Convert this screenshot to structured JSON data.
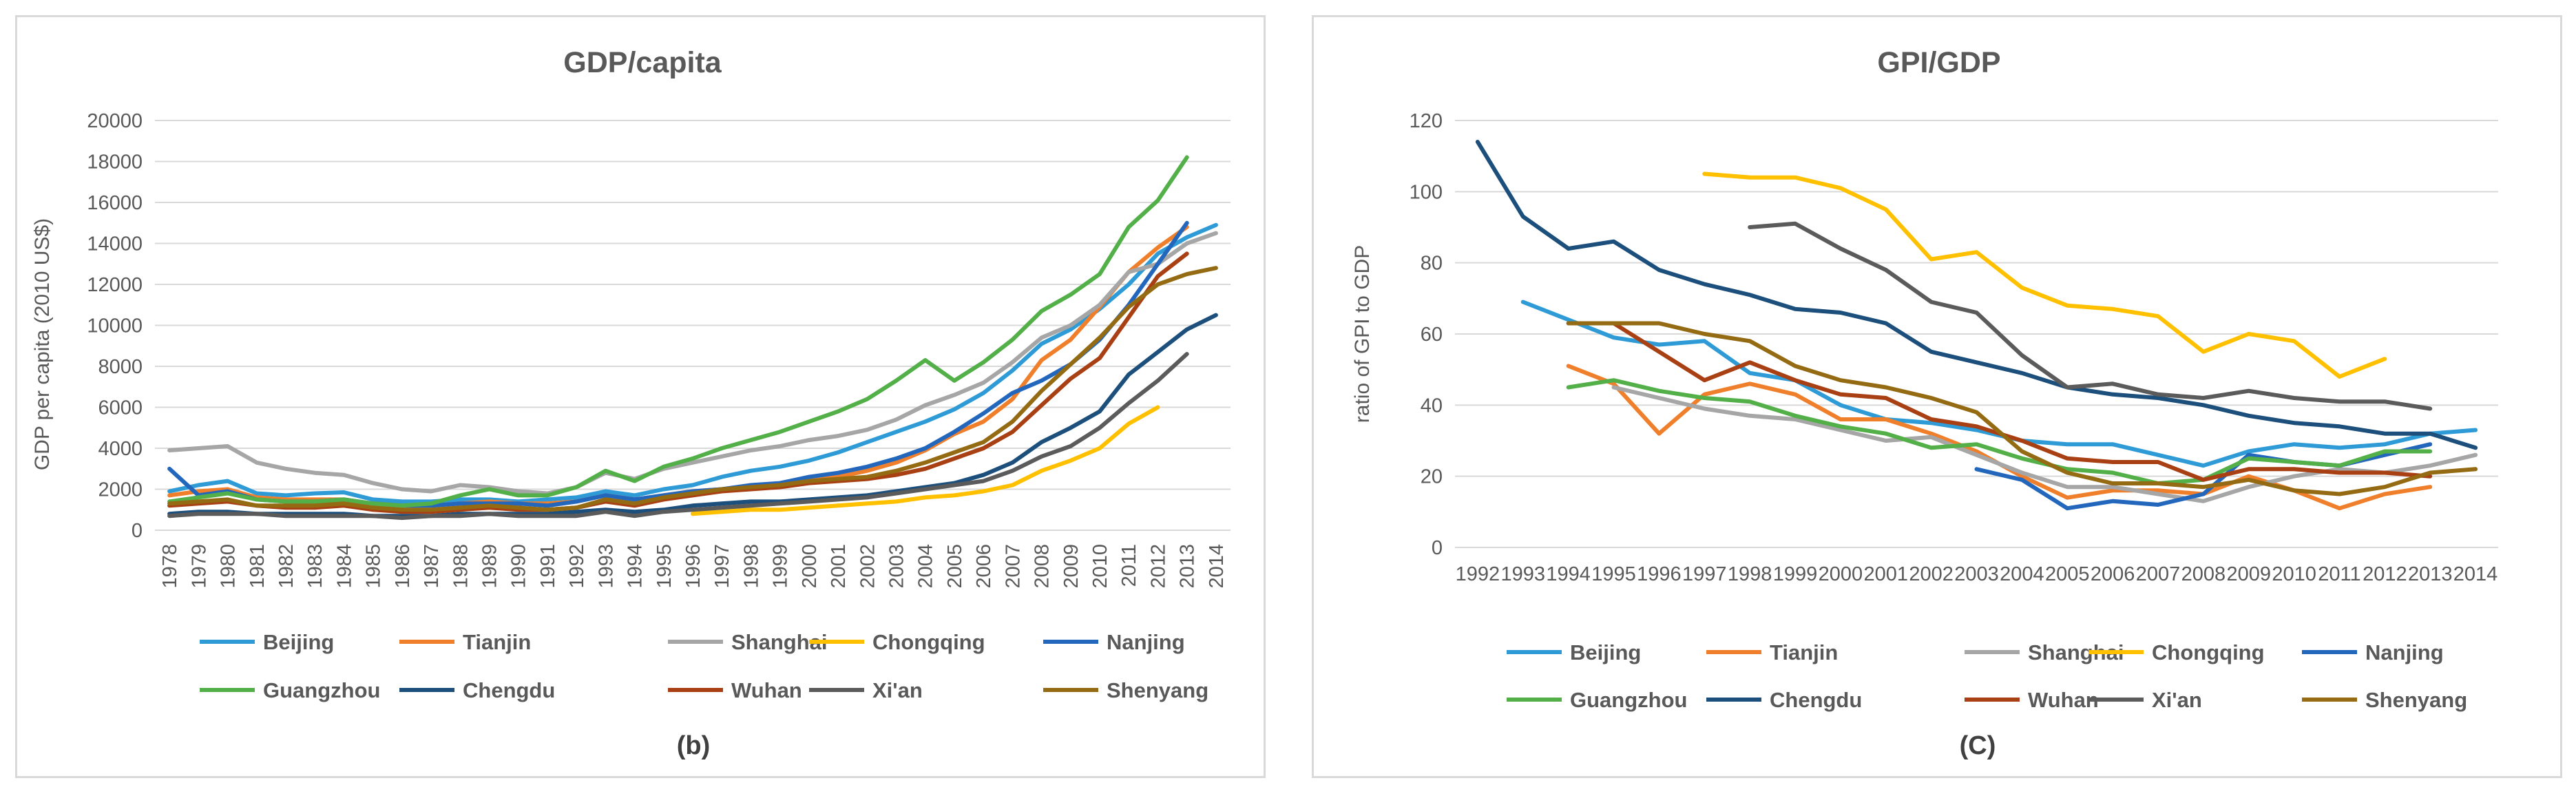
{
  "colors": {
    "Beijing": "#2e9bd6",
    "Tianjin": "#f07f2c",
    "Shanghai": "#a6a6a6",
    "Chongqing": "#ffc000",
    "Nanjing": "#2367bd",
    "Guangzhou": "#53b049",
    "Chengdu": "#1c4f7c",
    "Wuhan": "#a84014",
    "Xi'an": "#5b5b5b",
    "Shenyang": "#946b12"
  },
  "chart_data": [
    {
      "type": "line",
      "title": "GDP/capita",
      "caption": "(b)",
      "xlabel": "",
      "ylabel": "GDP per capita (2010 US$)",
      "ylim": [
        0,
        20000
      ],
      "yticks": [
        0,
        2000,
        4000,
        6000,
        8000,
        10000,
        12000,
        14000,
        16000,
        18000,
        20000
      ],
      "ytick_labels": [
        "0",
        "2000",
        "4000",
        "6000",
        "8000",
        "10000",
        "12000",
        "14000",
        "16000",
        "18000",
        "20000"
      ],
      "x": [
        "1978",
        "1979",
        "1980",
        "1981",
        "1982",
        "1983",
        "1984",
        "1985",
        "1986",
        "1987",
        "1988",
        "1989",
        "1990",
        "1991",
        "1992",
        "1993",
        "1994",
        "1995",
        "1996",
        "1997",
        "1998",
        "1999",
        "2000",
        "2001",
        "2002",
        "2003",
        "2004",
        "2005",
        "2006",
        "2007",
        "2008",
        "2009",
        "2010",
        "2011",
        "2012",
        "2013",
        "2014"
      ],
      "grid": true,
      "legend": "bottom",
      "series": [
        {
          "name": "Beijing",
          "start": "1978",
          "values": [
            1900,
            2200,
            2400,
            1800,
            1700,
            1800,
            1850,
            1500,
            1400,
            1400,
            1500,
            1500,
            1400,
            1500,
            1600,
            1900,
            1700,
            2000,
            2200,
            2600,
            2900,
            3100,
            3400,
            3800,
            4300,
            4800,
            5300,
            5900,
            6700,
            7800,
            9100,
            9800,
            10800,
            12000,
            13500,
            14300,
            14900
          ]
        },
        {
          "name": "Tianjin",
          "start": "1978",
          "values": [
            1700,
            1900,
            2000,
            1600,
            1500,
            1500,
            1500,
            1300,
            1200,
            1200,
            1300,
            1400,
            1300,
            1300,
            1400,
            1700,
            1500,
            1700,
            1900,
            2000,
            2100,
            2200,
            2400,
            2600,
            2900,
            3300,
            3900,
            4700,
            5300,
            6400,
            8300,
            9300,
            10900,
            12600,
            13800,
            14800,
            null
          ]
        },
        {
          "name": "Shanghai",
          "start": "1978",
          "values": [
            3900,
            4000,
            4100,
            3300,
            3000,
            2800,
            2700,
            2300,
            2000,
            1900,
            2200,
            2100,
            1900,
            1800,
            2100,
            2800,
            2500,
            3000,
            3300,
            3600,
            3900,
            4100,
            4400,
            4600,
            4900,
            5400,
            6100,
            6600,
            7200,
            8200,
            9400,
            10000,
            11000,
            12600,
            13000,
            14000,
            14500
          ]
        },
        {
          "name": "Chongqing",
          "start": "1978",
          "values": [
            null,
            null,
            null,
            null,
            null,
            null,
            null,
            null,
            null,
            null,
            null,
            null,
            null,
            null,
            null,
            null,
            null,
            null,
            800,
            900,
            1000,
            1000,
            1100,
            1200,
            1300,
            1400,
            1600,
            1700,
            1900,
            2200,
            2900,
            3400,
            4000,
            5200,
            6000,
            null,
            null
          ]
        },
        {
          "name": "Nanjing",
          "start": "1978",
          "values": [
            3000,
            1700,
            1900,
            1500,
            1400,
            1400,
            1500,
            1300,
            1200,
            1200,
            1300,
            1300,
            1300,
            1200,
            1400,
            1700,
            1500,
            1700,
            1900,
            2000,
            2200,
            2300,
            2600,
            2800,
            3100,
            3500,
            4000,
            4800,
            5700,
            6700,
            7300,
            8100,
            9300,
            11000,
            13000,
            15000,
            null
          ]
        },
        {
          "name": "Guangzhou",
          "start": "1978",
          "values": [
            1400,
            1600,
            1800,
            1500,
            1400,
            1400,
            1500,
            1300,
            1200,
            1300,
            1700,
            2000,
            1700,
            1700,
            2100,
            2900,
            2400,
            3100,
            3500,
            4000,
            4400,
            4800,
            5300,
            5800,
            6400,
            7300,
            8300,
            7300,
            8200,
            9300,
            10700,
            11500,
            12500,
            14800,
            16100,
            18200,
            null
          ]
        },
        {
          "name": "Chengdu",
          "start": "1978",
          "values": [
            800,
            900,
            900,
            800,
            800,
            800,
            800,
            700,
            700,
            700,
            800,
            800,
            800,
            800,
            900,
            1000,
            900,
            1000,
            1200,
            1300,
            1400,
            1400,
            1500,
            1600,
            1700,
            1900,
            2100,
            2300,
            2700,
            3300,
            4300,
            5000,
            5800,
            7600,
            8700,
            9800,
            10500
          ]
        },
        {
          "name": "Wuhan",
          "start": "1978",
          "values": [
            1200,
            1300,
            1400,
            1200,
            1100,
            1100,
            1200,
            1000,
            900,
            900,
            1000,
            1100,
            1000,
            1000,
            1100,
            1400,
            1200,
            1500,
            1700,
            1900,
            2000,
            2100,
            2300,
            2400,
            2500,
            2700,
            3000,
            3500,
            4000,
            4800,
            6100,
            7400,
            8400,
            10400,
            12400,
            13500,
            null
          ]
        },
        {
          "name": "Xi'an",
          "start": "1978",
          "values": [
            700,
            800,
            800,
            800,
            700,
            700,
            700,
            700,
            600,
            700,
            700,
            800,
            700,
            700,
            700,
            900,
            700,
            900,
            1000,
            1100,
            1200,
            1300,
            1400,
            1500,
            1600,
            1800,
            2000,
            2200,
            2400,
            2900,
            3600,
            4100,
            5000,
            6200,
            7300,
            8600,
            null
          ]
        },
        {
          "name": "Shenyang",
          "start": "1978",
          "values": [
            1300,
            1400,
            1500,
            1200,
            1200,
            1200,
            1300,
            1100,
            1000,
            1000,
            1100,
            1200,
            1100,
            1000,
            1100,
            1500,
            1300,
            1600,
            1800,
            2000,
            2100,
            2200,
            2400,
            2500,
            2600,
            2900,
            3300,
            3800,
            4300,
            5300,
            6800,
            8100,
            9400,
            10900,
            12000,
            12500,
            12800
          ]
        }
      ]
    },
    {
      "type": "line",
      "title": "GPI/GDP",
      "caption": "(C)",
      "xlabel": "",
      "ylabel": "ratio of GPI to GDP",
      "ylim": [
        0,
        120
      ],
      "yticks": [
        0,
        20,
        40,
        60,
        80,
        100,
        120
      ],
      "ytick_labels": [
        "0",
        "20",
        "40",
        "60",
        "80",
        "100",
        "120"
      ],
      "x": [
        "1992",
        "1993",
        "1994",
        "1995",
        "1996",
        "1997",
        "1998",
        "1999",
        "2000",
        "2001",
        "2002",
        "2003",
        "2004",
        "2005",
        "2006",
        "2007",
        "2008",
        "2009",
        "2010",
        "2011",
        "2012",
        "2013",
        "2014"
      ],
      "grid": true,
      "legend": "bottom",
      "series": [
        {
          "name": "Beijing",
          "values": [
            null,
            69,
            64,
            59,
            57,
            58,
            49,
            47,
            40,
            36,
            35,
            33,
            30,
            29,
            29,
            26,
            23,
            27,
            29,
            28,
            29,
            32,
            33
          ]
        },
        {
          "name": "Tianjin",
          "values": [
            null,
            null,
            51,
            46,
            32,
            43,
            46,
            43,
            36,
            36,
            32,
            27,
            20,
            14,
            16,
            16,
            15,
            20,
            16,
            11,
            15,
            17,
            null
          ]
        },
        {
          "name": "Shanghai",
          "values": [
            null,
            null,
            null,
            45,
            42,
            39,
            37,
            36,
            33,
            30,
            31,
            26,
            21,
            17,
            17,
            15,
            13,
            17,
            20,
            22,
            21,
            23,
            26
          ]
        },
        {
          "name": "Chongqing",
          "values": [
            null,
            null,
            null,
            null,
            null,
            105,
            104,
            104,
            101,
            95,
            81,
            83,
            73,
            68,
            67,
            65,
            55,
            60,
            58,
            48,
            53,
            null,
            null
          ]
        },
        {
          "name": "Nanjing",
          "values": [
            null,
            null,
            null,
            null,
            null,
            null,
            null,
            null,
            null,
            null,
            null,
            22,
            19,
            11,
            13,
            12,
            15,
            26,
            24,
            23,
            26,
            29,
            null
          ]
        },
        {
          "name": "Guangzhou",
          "values": [
            null,
            null,
            45,
            47,
            44,
            42,
            41,
            37,
            34,
            32,
            28,
            29,
            25,
            22,
            21,
            18,
            19,
            25,
            24,
            23,
            27,
            27,
            null
          ]
        },
        {
          "name": "Chengdu",
          "values": [
            114,
            93,
            84,
            86,
            78,
            74,
            71,
            67,
            66,
            63,
            55,
            52,
            49,
            45,
            43,
            42,
            40,
            37,
            35,
            34,
            32,
            32,
            28
          ]
        },
        {
          "name": "Wuhan",
          "values": [
            null,
            null,
            63,
            63,
            55,
            47,
            52,
            47,
            43,
            42,
            36,
            34,
            30,
            25,
            24,
            24,
            19,
            22,
            22,
            21,
            21,
            20,
            null
          ]
        },
        {
          "name": "Xi'an",
          "values": [
            null,
            null,
            null,
            null,
            null,
            null,
            90,
            91,
            84,
            78,
            69,
            66,
            54,
            45,
            46,
            43,
            42,
            44,
            42,
            41,
            41,
            39,
            null
          ]
        },
        {
          "name": "Shenyang",
          "values": [
            null,
            null,
            63,
            63,
            63,
            60,
            58,
            51,
            47,
            45,
            42,
            38,
            27,
            21,
            18,
            18,
            17,
            19,
            16,
            15,
            17,
            21,
            22
          ]
        }
      ]
    }
  ]
}
